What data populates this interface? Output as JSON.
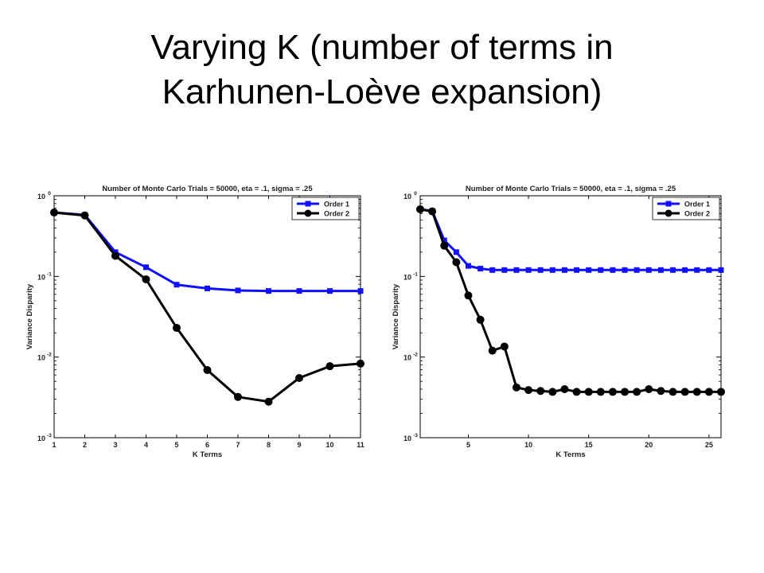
{
  "slide": {
    "title_line1": "Varying K (number of terms in",
    "title_line2": "Karhunen-Loève expansion)"
  },
  "colors": {
    "order1": "#1010ff",
    "order2": "#000000",
    "axis": "#000000"
  },
  "chart_data": [
    {
      "type": "line",
      "title": "Number of Monte Carlo Trials = 50000, eta = .1, sigma = .25",
      "xlabel": "K Terms",
      "ylabel": "Variance Disparity",
      "yscale": "log",
      "xlim": [
        1,
        11
      ],
      "ylim": [
        0.001,
        1
      ],
      "xticks": [
        "1",
        "2",
        "3",
        "4",
        "5",
        "6",
        "7",
        "8",
        "9",
        "10",
        "11"
      ],
      "xtick_values": [
        1,
        2,
        3,
        4,
        5,
        6,
        7,
        8,
        9,
        10,
        11
      ],
      "yticks": [
        {
          "value": 1,
          "base": "10",
          "exp": "0"
        },
        {
          "value": 0.1,
          "base": "10",
          "exp": "-1"
        },
        {
          "value": 0.01,
          "base": "10",
          "exp": "-2"
        },
        {
          "value": 0.001,
          "base": "10",
          "exp": "-3"
        }
      ],
      "grid": false,
      "legend_position": "top-right",
      "x": [
        1,
        2,
        3,
        4,
        5,
        6,
        7,
        8,
        9,
        10,
        11
      ],
      "series": [
        {
          "name": "Order 1",
          "marker": "square",
          "values": [
            0.62,
            0.58,
            0.2,
            0.13,
            0.079,
            0.071,
            0.067,
            0.066,
            0.066,
            0.066,
            0.066
          ]
        },
        {
          "name": "Order 2",
          "marker": "circle",
          "values": [
            0.62,
            0.57,
            0.18,
            0.092,
            0.023,
            0.0069,
            0.0032,
            0.0028,
            0.0055,
            0.0077,
            0.0083
          ]
        }
      ]
    },
    {
      "type": "line",
      "title": "Number of Monte Carlo Trials = 50000, eta = .1, sigma = .25",
      "xlabel": "K Terms",
      "ylabel": "Variance Disparity",
      "yscale": "log",
      "xlim": [
        1,
        26
      ],
      "ylim": [
        0.001,
        1
      ],
      "xticks": [
        "5",
        "10",
        "15",
        "20",
        "25"
      ],
      "xtick_values": [
        5,
        10,
        15,
        20,
        25
      ],
      "yticks": [
        {
          "value": 1,
          "base": "10",
          "exp": "0"
        },
        {
          "value": 0.1,
          "base": "10",
          "exp": "-1"
        },
        {
          "value": 0.01,
          "base": "10",
          "exp": "-2"
        },
        {
          "value": 0.001,
          "base": "10",
          "exp": "-3"
        }
      ],
      "grid": false,
      "legend_position": "top-right",
      "x": [
        1,
        2,
        3,
        4,
        5,
        6,
        7,
        8,
        9,
        10,
        11,
        12,
        13,
        14,
        15,
        16,
        17,
        18,
        19,
        20,
        21,
        22,
        23,
        24,
        25,
        26
      ],
      "series": [
        {
          "name": "Order 1",
          "marker": "square",
          "values": [
            0.68,
            0.65,
            0.28,
            0.2,
            0.135,
            0.125,
            0.12,
            0.12,
            0.12,
            0.12,
            0.12,
            0.12,
            0.12,
            0.12,
            0.12,
            0.12,
            0.12,
            0.12,
            0.12,
            0.12,
            0.12,
            0.12,
            0.12,
            0.12,
            0.12,
            0.12
          ]
        },
        {
          "name": "Order 2",
          "marker": "circle",
          "values": [
            0.68,
            0.64,
            0.24,
            0.15,
            0.058,
            0.029,
            0.012,
            0.0135,
            0.0042,
            0.0039,
            0.0038,
            0.0037,
            0.004,
            0.0037,
            0.0037,
            0.0037,
            0.0037,
            0.0037,
            0.0037,
            0.004,
            0.0038,
            0.0037,
            0.0037,
            0.0037,
            0.0037,
            0.0037
          ]
        }
      ]
    }
  ]
}
